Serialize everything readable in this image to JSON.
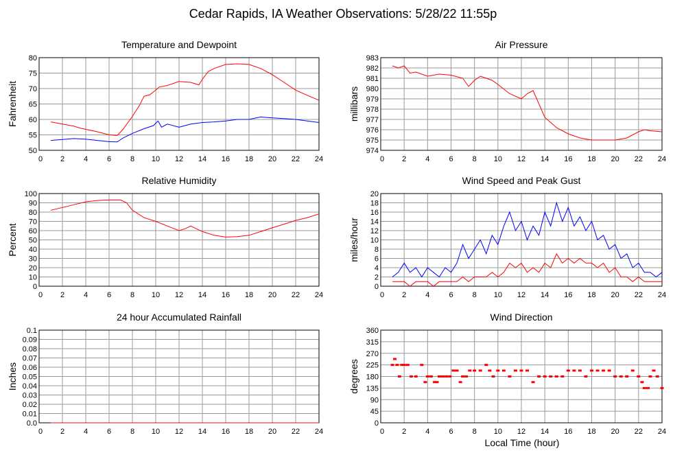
{
  "title": "Cedar Rapids, IA Weather Observations: 5/28/22 11:55p",
  "footer_xlabel": "Local Time (hour)",
  "colors": {
    "primary": "#ff0000",
    "secondary": "#0000ff",
    "grid": "#999999",
    "axis": "#000000"
  },
  "chart_data": [
    {
      "type": "line",
      "title": "Temperature and Dewpoint",
      "ylabel": "Fahrenheit",
      "xlim": [
        0,
        24
      ],
      "ylim": [
        50,
        80
      ],
      "xticks": [
        2,
        4,
        6,
        8,
        10,
        12,
        14,
        16,
        18,
        20,
        22,
        24
      ],
      "yticks": [
        50,
        55,
        60,
        65,
        70,
        75,
        80
      ],
      "grid": true,
      "series": [
        {
          "color": "#ff0000",
          "x": [
            1,
            2,
            3,
            3.5,
            4,
            5,
            6,
            6.7,
            7.2,
            8,
            8.6,
            9,
            9.5,
            10,
            10.3,
            11,
            12,
            13,
            13.7,
            14,
            14.5,
            15,
            16,
            17,
            18,
            19,
            20,
            21,
            22,
            23,
            24
          ],
          "y": [
            59.2,
            58.5,
            57.8,
            57.2,
            56.8,
            56,
            55,
            54.8,
            56.8,
            61,
            64.5,
            67.5,
            68,
            69.5,
            70.5,
            71,
            72.3,
            72,
            71.2,
            73,
            75.5,
            76.5,
            77.8,
            78,
            77.8,
            76.5,
            74.5,
            72,
            69.5,
            67.8,
            66.2
          ]
        },
        {
          "color": "#0000ff",
          "x": [
            1,
            2,
            3,
            4,
            5,
            6,
            6.7,
            7.2,
            8,
            9,
            9.8,
            10.2,
            10.5,
            11,
            12,
            13,
            14,
            15,
            16,
            17,
            18,
            19,
            20,
            21,
            22,
            23,
            24
          ],
          "y": [
            53.2,
            53.5,
            53.8,
            53.6,
            53.2,
            52.8,
            52.7,
            54,
            55.5,
            57,
            58,
            59.5,
            57.5,
            58.5,
            57.5,
            58.5,
            59,
            59.2,
            59.5,
            60,
            60,
            60.8,
            60.5,
            60.3,
            60,
            59.5,
            59
          ]
        }
      ]
    },
    {
      "type": "line",
      "title": "Air Pressure",
      "ylabel": "millibars",
      "xlim": [
        0,
        24
      ],
      "ylim": [
        974,
        983
      ],
      "xticks": [
        2,
        4,
        6,
        8,
        10,
        12,
        14,
        16,
        18,
        20,
        22,
        24
      ],
      "yticks": [
        974,
        975,
        976,
        977,
        978,
        979,
        980,
        981,
        982,
        983
      ],
      "grid": true,
      "series": [
        {
          "color": "#ff0000",
          "x": [
            1,
            1.5,
            2,
            2.5,
            3,
            4,
            5,
            6,
            7,
            7.5,
            8,
            8.5,
            9,
            9.5,
            10,
            11,
            12,
            12.5,
            13,
            14,
            15,
            16,
            17,
            18,
            19,
            20,
            21,
            22,
            22.5,
            23,
            24
          ],
          "y": [
            982.2,
            982,
            982.2,
            981.5,
            981.6,
            981.2,
            981.4,
            981.3,
            981,
            980.2,
            980.8,
            981.2,
            981,
            980.8,
            980.4,
            979.5,
            979,
            979.5,
            979.8,
            977.2,
            976.2,
            975.6,
            975.2,
            975,
            975,
            975,
            975.2,
            975.8,
            976,
            975.9,
            975.8
          ]
        }
      ]
    },
    {
      "type": "line",
      "title": "Relative Humidity",
      "ylabel": "Percent",
      "xlim": [
        0,
        24
      ],
      "ylim": [
        0,
        100
      ],
      "xticks": [
        2,
        4,
        6,
        8,
        10,
        12,
        14,
        16,
        18,
        20,
        22,
        24
      ],
      "yticks": [
        0,
        10,
        20,
        30,
        40,
        50,
        60,
        70,
        80,
        90,
        100
      ],
      "grid": true,
      "series": [
        {
          "color": "#ff0000",
          "x": [
            1,
            2,
            3,
            4,
            5,
            6,
            7,
            7.5,
            8,
            9,
            10,
            11,
            12,
            12.5,
            13,
            14,
            15,
            16,
            17,
            18,
            19,
            20,
            21,
            22,
            23,
            24
          ],
          "y": [
            82,
            85,
            88,
            91,
            92.5,
            93,
            93,
            90,
            82,
            74,
            70,
            65,
            60,
            62,
            65,
            59,
            55,
            53,
            53.5,
            55,
            59,
            63,
            67,
            71,
            74,
            78
          ]
        }
      ]
    },
    {
      "type": "line",
      "title": "Wind Speed and Peak Gust",
      "ylabel": "miles/hour",
      "xlim": [
        0,
        24
      ],
      "ylim": [
        0,
        20
      ],
      "xticks": [
        2,
        4,
        6,
        8,
        10,
        12,
        14,
        16,
        18,
        20,
        22,
        24
      ],
      "yticks": [
        0,
        2,
        4,
        6,
        8,
        10,
        12,
        14,
        16,
        18,
        20
      ],
      "grid": true,
      "series": [
        {
          "color": "#0000ff",
          "x": [
            1,
            1.5,
            2,
            2.5,
            3,
            3.5,
            4,
            4.5,
            5,
            5.5,
            6,
            6.5,
            7,
            7.5,
            8,
            8.5,
            9,
            9.5,
            10,
            10.5,
            11,
            11.5,
            12,
            12.5,
            13,
            13.5,
            14,
            14.5,
            15,
            15.5,
            16,
            16.5,
            17,
            17.5,
            18,
            18.5,
            19,
            19.5,
            20,
            20.5,
            21,
            21.5,
            22,
            22.5,
            23,
            23.5,
            24
          ],
          "y": [
            2,
            3,
            5,
            3,
            4,
            2,
            4,
            3,
            2,
            4,
            3,
            5,
            9,
            6,
            8,
            10,
            7,
            11,
            9,
            13,
            16,
            12,
            14,
            10,
            13,
            11,
            16,
            13,
            18,
            14,
            17,
            13,
            15,
            12,
            14,
            10,
            11,
            8,
            9,
            6,
            7,
            4,
            5,
            3,
            3,
            2,
            3
          ]
        },
        {
          "color": "#ff0000",
          "x": [
            1,
            1.5,
            2,
            2.5,
            3,
            3.5,
            4,
            4.5,
            5,
            5.5,
            6,
            6.5,
            7,
            7.5,
            8,
            8.5,
            9,
            9.5,
            10,
            10.5,
            11,
            11.5,
            12,
            12.5,
            13,
            13.5,
            14,
            14.5,
            15,
            15.5,
            16,
            16.5,
            17,
            17.5,
            18,
            18.5,
            19,
            19.5,
            20,
            20.5,
            21,
            21.5,
            22,
            22.5,
            23,
            23.5,
            24
          ],
          "y": [
            1,
            1,
            1,
            0,
            1,
            1,
            1,
            0,
            1,
            1,
            1,
            1,
            2,
            1,
            2,
            2,
            2,
            3,
            2,
            3,
            5,
            4,
            5,
            3,
            4,
            3,
            5,
            4,
            7,
            5,
            6,
            5,
            6,
            5,
            5,
            4,
            5,
            3,
            4,
            2,
            2,
            1,
            2,
            1,
            1,
            1,
            1
          ]
        }
      ]
    },
    {
      "type": "line",
      "title": "24 hour Accumulated Rainfall",
      "ylabel": "Inches",
      "xlim": [
        0,
        24
      ],
      "ylim": [
        0,
        0.1
      ],
      "xticks": [
        2,
        4,
        6,
        8,
        10,
        12,
        14,
        16,
        18,
        20,
        22,
        24
      ],
      "yticks": [
        0.0,
        0.01,
        0.02,
        0.03,
        0.04,
        0.05,
        0.06,
        0.07,
        0.08,
        0.09,
        0.1
      ],
      "ytick_labels": [
        "0.0",
        "0.01",
        "0.02",
        "0.03",
        "0.04",
        "0.05",
        "0.06",
        "0.07",
        "0.08",
        "0.09",
        "0.1"
      ],
      "grid": true,
      "series": [
        {
          "color": "#ff0000",
          "x": [
            1,
            24
          ],
          "y": [
            0,
            0
          ]
        }
      ]
    },
    {
      "type": "scatter",
      "title": "Wind Direction",
      "ylabel": "degrees",
      "xlabel": "Local Time (hour)",
      "xlim": [
        0,
        24
      ],
      "ylim": [
        0,
        360
      ],
      "xticks": [
        2,
        4,
        6,
        8,
        10,
        12,
        14,
        16,
        18,
        20,
        22,
        24
      ],
      "yticks": [
        0,
        45,
        90,
        135,
        180,
        225,
        270,
        315,
        360
      ],
      "grid": true,
      "series": [
        {
          "color": "#ff0000",
          "x": [
            1,
            1.2,
            1.4,
            1.6,
            1.8,
            2,
            2.3,
            2.6,
            3,
            3.5,
            3.8,
            4,
            4.3,
            4.6,
            4.8,
            5,
            5.3,
            5.6,
            5.9,
            6.2,
            6.5,
            6.8,
            7,
            7.3,
            7.6,
            8,
            8.5,
            9,
            9.3,
            9.6,
            10,
            10.5,
            11,
            11.5,
            12,
            12.5,
            13,
            13.5,
            14,
            14.5,
            15,
            15.5,
            16,
            16.5,
            17,
            17.5,
            18,
            18.5,
            19,
            19.5,
            20,
            20.5,
            21,
            21.5,
            22,
            22.3,
            22.5,
            22.8,
            23,
            23.3,
            23.6,
            24
          ],
          "y": [
            225,
            248,
            225,
            180,
            225,
            225,
            225,
            180,
            180,
            225,
            158,
            180,
            180,
            158,
            158,
            180,
            180,
            180,
            180,
            203,
            203,
            158,
            180,
            180,
            203,
            203,
            203,
            225,
            203,
            180,
            203,
            203,
            180,
            203,
            203,
            203,
            158,
            180,
            180,
            180,
            180,
            180,
            203,
            203,
            203,
            180,
            203,
            203,
            203,
            203,
            180,
            180,
            180,
            203,
            180,
            158,
            135,
            135,
            180,
            203,
            180,
            135
          ]
        }
      ]
    }
  ]
}
